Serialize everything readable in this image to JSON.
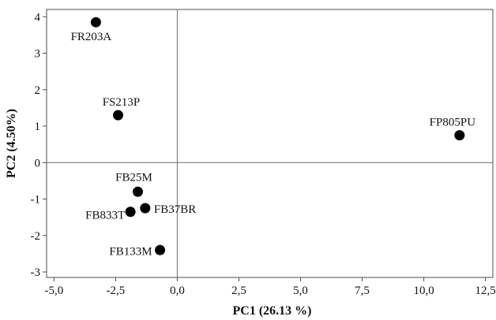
{
  "chart_data": {
    "type": "scatter",
    "title": "",
    "xlabel": "PC1 (26.13 %)",
    "ylabel": "PC2 (4.50%)",
    "xlim": [
      -5.3,
      12.8
    ],
    "ylim": [
      -3.15,
      4.2
    ],
    "x_ticks": [
      "-5,0",
      "-2,5",
      "0,0",
      "2,5",
      "5,0",
      "7,5",
      "10,0",
      "12,5"
    ],
    "y_ticks": [
      "-3",
      "-2",
      "-1",
      "0",
      "1",
      "2",
      "3",
      "4"
    ],
    "reference_lines": {
      "x": 0,
      "y": 0
    },
    "grid": false,
    "legend": "none",
    "points": [
      {
        "label": "FR203A",
        "x": -3.3,
        "y": 3.85
      },
      {
        "label": "FS213P",
        "x": -2.4,
        "y": 1.3
      },
      {
        "label": "FP805PU",
        "x": 11.45,
        "y": 0.75
      },
      {
        "label": "FB25M",
        "x": -1.6,
        "y": -0.8
      },
      {
        "label": "FB37BR",
        "x": -1.3,
        "y": -1.25
      },
      {
        "label": "FB833T",
        "x": -1.9,
        "y": -1.35
      },
      {
        "label": "FB133M",
        "x": -0.7,
        "y": -2.4
      }
    ]
  }
}
